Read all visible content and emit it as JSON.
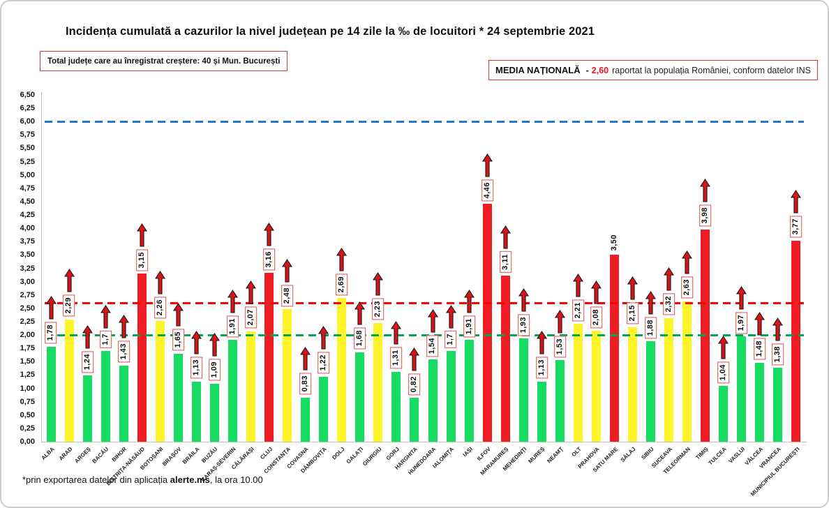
{
  "title": "Incidența cumulată a cazurilor la nivel județean pe 14 zile la ‰ de locuitori * 24 septembrie 2021",
  "growth_box": {
    "text": "Total județe care au înregistrat creștere:  40 și Mun. București"
  },
  "media_box": {
    "label": "MEDIA NAȚIONALĂ",
    "separator": "-",
    "value": "2,60",
    "rest": "raportat la populația României, conform datelor INS"
  },
  "footnote": {
    "pre": "*prin exportarea  datelor din aplicația ",
    "bold": "alerte.ms",
    "post": ", la ora 10.00"
  },
  "chart_data": {
    "type": "bar",
    "title": "Incidența cumulată a cazurilor la nivel județean pe 14 zile la ‰ de locuitori * 24 septembrie 2021",
    "xlabel": "",
    "ylabel": "",
    "ylim": [
      0,
      6.5
    ],
    "ytick_step": 0.25,
    "ytick_labels": [
      "0,00",
      "0,25",
      "0,50",
      "0,75",
      "1,00",
      "1,25",
      "1,50",
      "1,75",
      "2,00",
      "2,25",
      "2,50",
      "2,75",
      "3,00",
      "3,25",
      "3,50",
      "3,75",
      "4,00",
      "4,25",
      "4,50",
      "4,75",
      "5,00",
      "5,25",
      "5,50",
      "5,75",
      "6,00",
      "6,25",
      "6,50"
    ],
    "grid": false,
    "legend": "none",
    "categories": [
      "ALBA",
      "ARAD",
      "ARGEȘ",
      "BACĂU",
      "BIHOR",
      "BISTRIȚA-NĂSĂUD",
      "BOTOȘANI",
      "BRAȘOV",
      "BRĂILA",
      "BUZĂU",
      "CARAȘ-SEVERIN",
      "CĂLĂRAȘI",
      "CLUJ",
      "CONSTANȚA",
      "COVASNA",
      "DÂMBOVIȚA",
      "DOLJ",
      "GALAȚI",
      "GIURGIU",
      "GORJ",
      "HARGHITA",
      "HUNEDOARA",
      "IALOMIȚA",
      "IAȘI",
      "ILFOV",
      "MARAMUREȘ",
      "MEHEDINȚI",
      "MUREȘ",
      "NEAMȚ",
      "OLT",
      "PRAHOVA",
      "SATU MARE",
      "SĂLAJ",
      "SIBIU",
      "SUCEAVA",
      "TELEORMAN",
      "TIMIȘ",
      "TULCEA",
      "VASLUI",
      "VÂLCEA",
      "VRANCEA",
      "MUNICIPIUL BUCUREȘTI"
    ],
    "values": [
      1.78,
      2.29,
      1.24,
      1.7,
      1.43,
      3.15,
      2.26,
      1.65,
      1.13,
      1.09,
      1.91,
      2.07,
      3.16,
      2.48,
      0.83,
      1.22,
      2.69,
      1.68,
      2.23,
      1.31,
      0.82,
      1.54,
      1.7,
      1.91,
      4.46,
      3.11,
      1.93,
      1.13,
      1.53,
      2.21,
      2.08,
      3.5,
      2.15,
      1.88,
      2.32,
      2.63,
      3.98,
      1.04,
      1.97,
      1.48,
      1.38,
      3.77
    ],
    "value_labels": [
      "1,78",
      "2,29",
      "1,24",
      "1,7",
      "1,43",
      "3,15",
      "2,26",
      "1,65",
      "1,13",
      "1,09",
      "1,91",
      "2,07",
      "3,16",
      "2,48",
      "0,83",
      "1,22",
      "2,69",
      "1,68",
      "2,23",
      "1,31",
      "0,82",
      "1,54",
      "1,7",
      "1,91",
      "4,46",
      "3,11",
      "1,93",
      "1,13",
      "1,53",
      "2,21",
      "2,08",
      "3,50",
      "2,15",
      "1,88",
      "2,32",
      "2,63",
      "3,98",
      "1,04",
      "1,97",
      "1,48",
      "1,38",
      "3,77"
    ],
    "bar_colors": [
      "green",
      "yellow",
      "green",
      "green",
      "green",
      "red",
      "yellow",
      "green",
      "green",
      "green",
      "green",
      "yellow",
      "red",
      "yellow",
      "green",
      "green",
      "yellow",
      "green",
      "yellow",
      "green",
      "green",
      "green",
      "green",
      "green",
      "red",
      "red",
      "green",
      "green",
      "green",
      "yellow",
      "yellow",
      "red",
      "yellow",
      "green",
      "yellow",
      "yellow",
      "red",
      "green",
      "green",
      "green",
      "green",
      "red"
    ],
    "boxed_label": [
      true,
      true,
      true,
      true,
      true,
      true,
      true,
      true,
      true,
      true,
      true,
      true,
      true,
      true,
      true,
      true,
      true,
      true,
      true,
      true,
      true,
      true,
      true,
      true,
      true,
      true,
      true,
      true,
      true,
      true,
      true,
      false,
      true,
      true,
      true,
      true,
      true,
      true,
      true,
      true,
      true,
      true
    ],
    "increase_arrow": [
      true,
      true,
      true,
      true,
      true,
      true,
      true,
      true,
      true,
      true,
      true,
      true,
      true,
      true,
      true,
      true,
      true,
      true,
      true,
      true,
      true,
      true,
      true,
      true,
      true,
      true,
      true,
      true,
      true,
      true,
      true,
      false,
      true,
      true,
      true,
      true,
      true,
      true,
      true,
      true,
      true,
      true
    ],
    "palette": {
      "green": "#16dd61",
      "yellow": "#fff42a",
      "red": "#ee1c23"
    },
    "arrow_color": "#d91418",
    "label_box_border": "#e05050",
    "reference_lines": [
      {
        "value": 6.0,
        "color": "#2176c7",
        "style": "dashed"
      },
      {
        "value": 2.6,
        "color": "#fe0000",
        "style": "dashed"
      },
      {
        "value": 2.0,
        "color": "#00a84f",
        "style": "dashed"
      }
    ]
  }
}
